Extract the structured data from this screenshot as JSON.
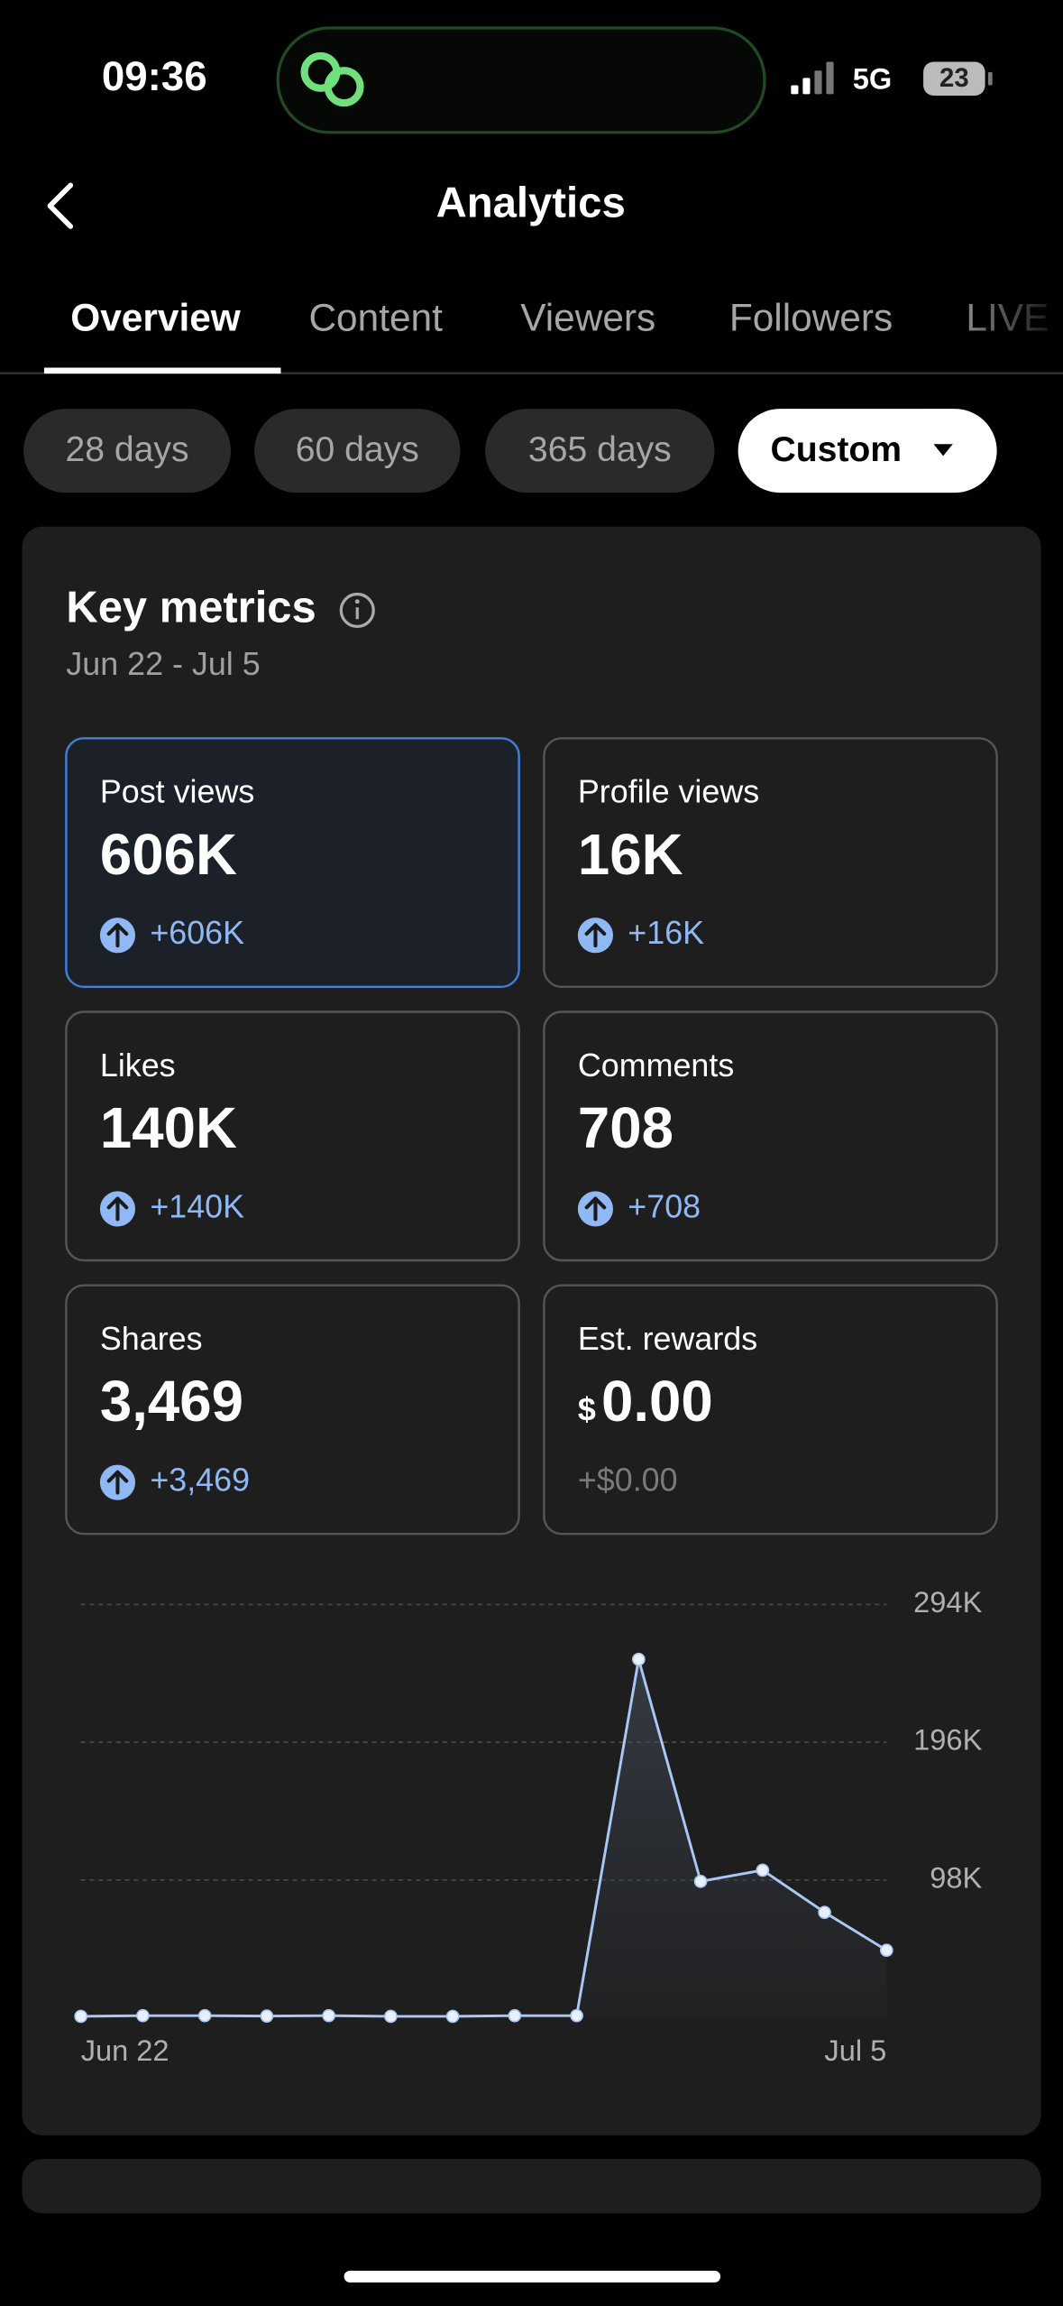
{
  "status_bar": {
    "time": "09:36",
    "network": "5G",
    "battery": "23"
  },
  "header": {
    "title": "Analytics"
  },
  "tabs": [
    "Overview",
    "Content",
    "Viewers",
    "Followers",
    "LIVE"
  ],
  "ranges": [
    "28 days",
    "60 days",
    "365 days",
    "Custom"
  ],
  "key_metrics": {
    "title": "Key metrics",
    "date_range": "Jun 22 - Jul 5",
    "items": [
      {
        "label": "Post views",
        "value": "606K",
        "change": "+606K"
      },
      {
        "label": "Profile views",
        "value": "16K",
        "change": "+16K"
      },
      {
        "label": "Likes",
        "value": "140K",
        "change": "+140K"
      },
      {
        "label": "Comments",
        "value": "708",
        "change": "+708"
      },
      {
        "label": "Shares",
        "value": "3,469",
        "change": "+3,469"
      },
      {
        "label": "Est. rewards",
        "currency": "$",
        "value": "0.00",
        "change": "+$0.00"
      }
    ]
  },
  "chart_data": {
    "type": "line",
    "categories": [
      "Jun 22",
      null,
      null,
      null,
      null,
      null,
      null,
      null,
      null,
      null,
      null,
      null,
      null,
      "Jul 5"
    ],
    "values": [
      1000,
      1500,
      1500,
      1200,
      1500,
      1000,
      1000,
      1500,
      1500,
      255000,
      97000,
      105000,
      75000,
      48000
    ],
    "color": "#a9c8f5",
    "ylim": [
      0,
      294000
    ],
    "yticks": [
      {
        "value": 98000,
        "label": "98K"
      },
      {
        "value": 196000,
        "label": "196K"
      },
      {
        "value": 294000,
        "label": "294K"
      }
    ],
    "grid": true
  }
}
